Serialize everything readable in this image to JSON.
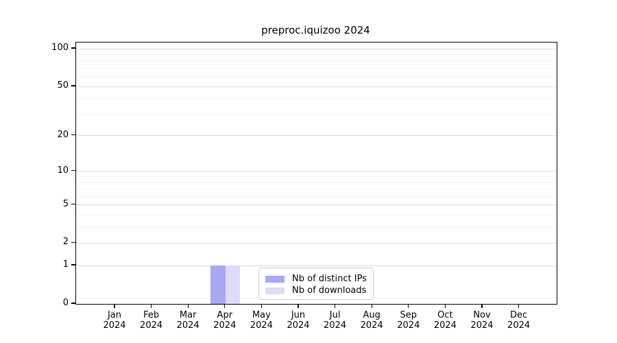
{
  "chart_data": {
    "type": "bar",
    "title": "preproc.iquizoo 2024",
    "categories": [
      "Jan",
      "Feb",
      "Mar",
      "Apr",
      "May",
      "Jun",
      "Jul",
      "Aug",
      "Sep",
      "Oct",
      "Nov",
      "Dec"
    ],
    "category_year": "2024",
    "series": [
      {
        "name": "Nb of distinct IPs",
        "color": "#a7a7f2",
        "values": [
          0,
          0,
          0,
          1,
          0,
          0,
          0,
          0,
          0,
          0,
          0,
          0
        ]
      },
      {
        "name": "Nb of downloads",
        "color": "#dcdcf8",
        "values": [
          0,
          0,
          0,
          1,
          0,
          0,
          0,
          0,
          0,
          0,
          0,
          0
        ]
      }
    ],
    "xlabel": "",
    "ylabel": "",
    "yscale": "log1p",
    "ylim": [
      0,
      112
    ],
    "yticks": [
      0,
      1,
      2,
      5,
      10,
      20,
      50,
      100
    ],
    "major_gridlines": [
      1,
      2,
      5,
      10,
      20,
      50,
      100
    ],
    "minor_gridlines": [
      3,
      4,
      6,
      7,
      8,
      9,
      30,
      40,
      60,
      70,
      80,
      90
    ],
    "grid": true,
    "legend_position": "lower center"
  },
  "colors": {
    "major_grid": "#d9d9d9",
    "minor_grid": "#f0f0f0",
    "spine": "#000000",
    "text": "#000000",
    "legend_border": "#cccccc"
  }
}
